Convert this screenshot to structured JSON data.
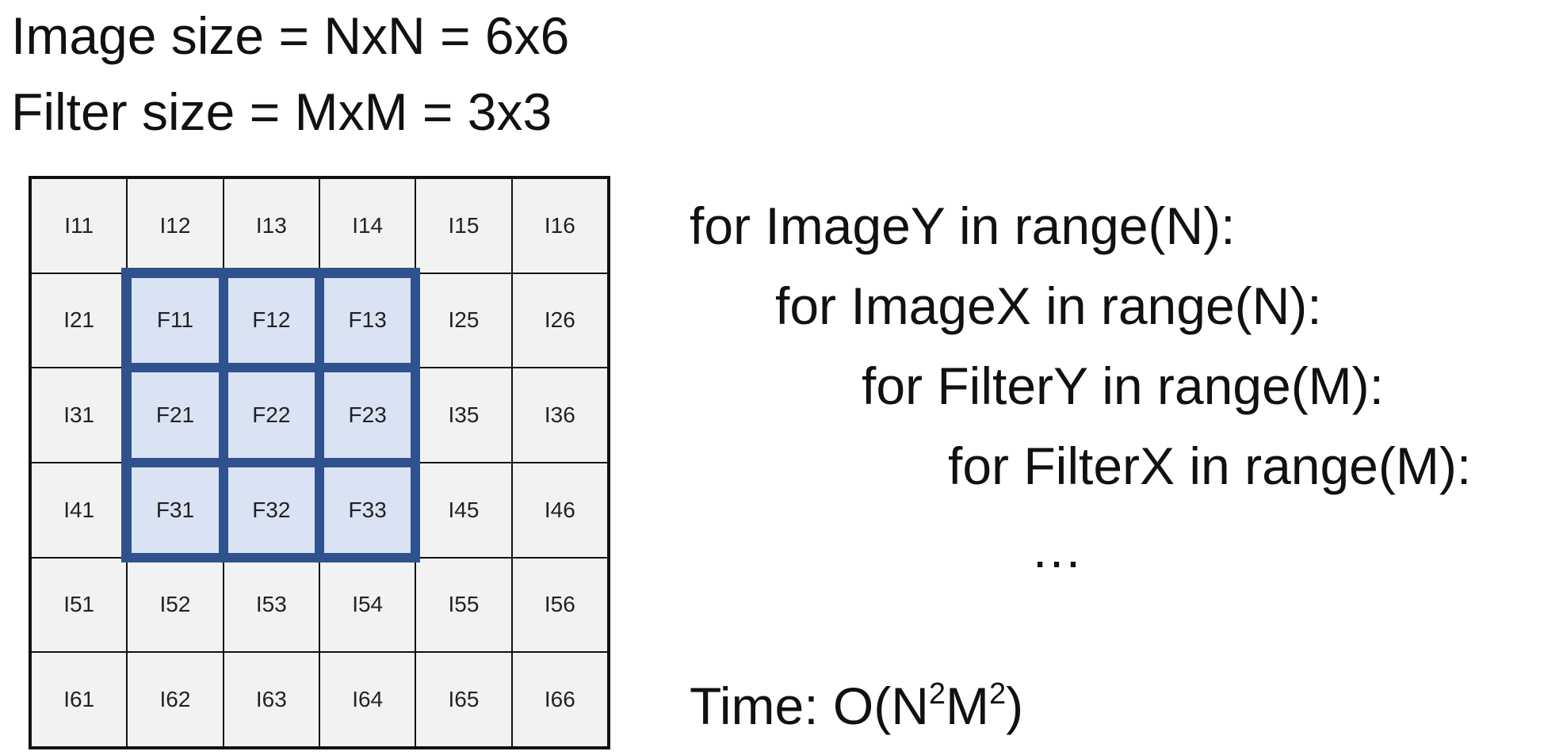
{
  "header": {
    "image_size": "Image size = NxN = 6x6",
    "filter_size": "Filter size = MxM = 3x3"
  },
  "grid": {
    "rows": [
      [
        "I11",
        "I12",
        "I13",
        "I14",
        "I15",
        "I16"
      ],
      [
        "I21",
        "F11",
        "F12",
        "F13",
        "I25",
        "I26"
      ],
      [
        "I31",
        "F21",
        "F22",
        "F23",
        "I35",
        "I36"
      ],
      [
        "I41",
        "F31",
        "F32",
        "F33",
        "I45",
        "I46"
      ],
      [
        "I51",
        "I52",
        "I53",
        "I54",
        "I55",
        "I56"
      ],
      [
        "I61",
        "I62",
        "I63",
        "I64",
        "I65",
        "I66"
      ]
    ],
    "filter_highlight_color": "#dae3f3",
    "filter_border_color": "#2f528f",
    "image_cell_color": "#f2f2f2"
  },
  "code": {
    "lines": [
      "for ImageY in range(N):",
      "for ImageX in range(N):",
      "for FilterY in range(M):",
      "for FilterX in range(M):"
    ],
    "ellipsis": "…",
    "time_prefix": "Time: O(N",
    "time_sup1": "2",
    "time_mid": "M",
    "time_sup2": "2",
    "time_suffix": ")"
  }
}
